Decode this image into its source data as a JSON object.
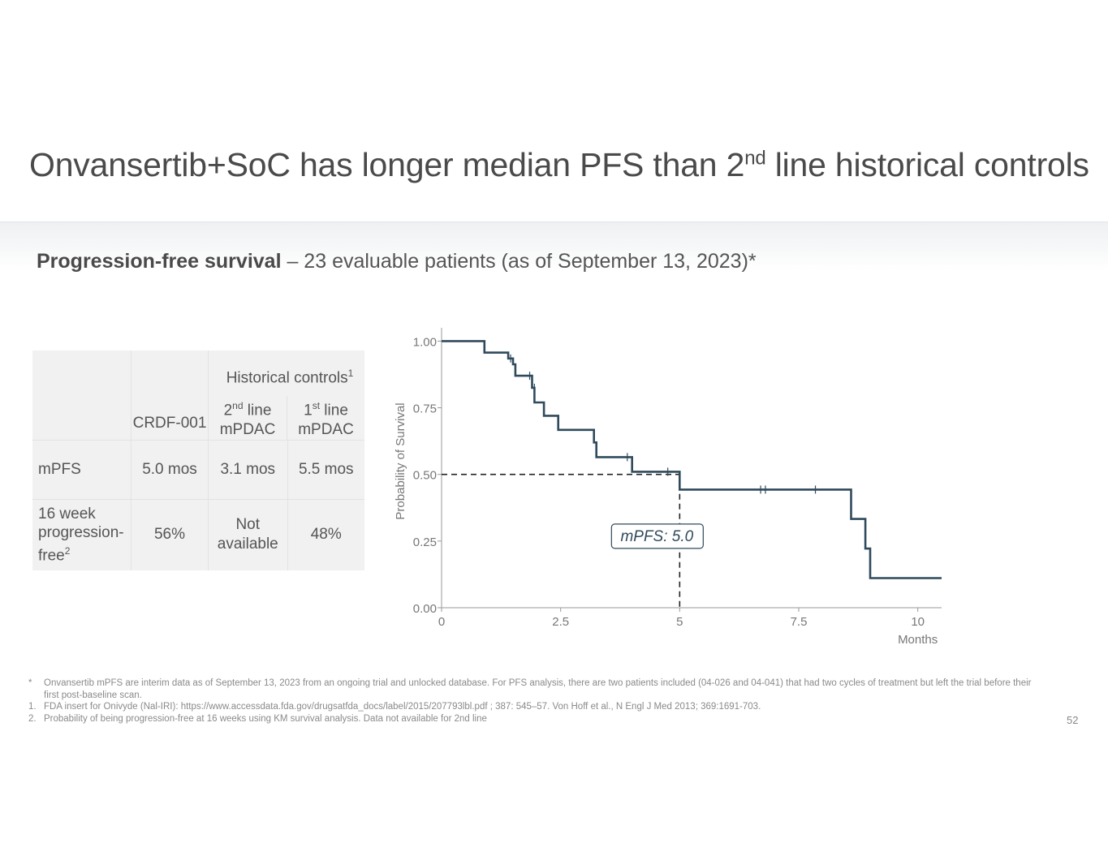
{
  "slide": {
    "title_pre": "Onvansertib+SoC has longer median PFS than 2",
    "title_sup": "nd",
    "title_post": " line historical controls",
    "subtitle_bold": "Progression-free survival",
    "subtitle_rest": " – 23 evaluable patients (as of September 13, 2023)*",
    "page_number": "52"
  },
  "table": {
    "group_header": "Historical controls",
    "group_header_sup": "1",
    "col_crdf": "CRDF-001",
    "col_2nd_num": "2",
    "col_2nd_sup": "nd",
    "col_2nd_rest": " line",
    "col_2nd_sub": "mPDAC",
    "col_1st_num": "1",
    "col_1st_sup": "st",
    "col_1st_rest": " line",
    "col_1st_sub": "mPDAC",
    "row1": {
      "label": "mPFS",
      "crdf": "5.0 mos",
      "second": "3.1 mos",
      "first": "5.5 mos"
    },
    "row2": {
      "label_l1": "16 week",
      "label_l2": "progression-",
      "label_l3": "free",
      "label_sup": "2",
      "crdf": "56%",
      "second_l1": "Not",
      "second_l2": "available",
      "first": "48%"
    }
  },
  "chart_data": {
    "type": "line",
    "subtype": "kaplan-meier step curve",
    "ylabel": "Probability of Survival",
    "xlabel": "Months",
    "xlim": [
      0,
      10.5
    ],
    "ylim": [
      0,
      1.05
    ],
    "x_ticks": [
      0,
      2.5,
      5,
      7.5,
      10
    ],
    "x_tick_labels": [
      "0",
      "2.5",
      "5",
      "7.5",
      "10"
    ],
    "y_ticks": [
      0,
      0.25,
      0.5,
      0.75,
      1.0
    ],
    "y_tick_labels": [
      "0.00",
      "0.25",
      "0.50",
      "0.75",
      "1.00"
    ],
    "series": [
      {
        "name": "PFS",
        "color": "#2f4a5c",
        "x": [
          0,
          0.9,
          0.9,
          1.4,
          1.4,
          1.5,
          1.5,
          1.55,
          1.55,
          1.9,
          1.9,
          1.95,
          1.95,
          2.15,
          2.15,
          2.45,
          2.45,
          3.2,
          3.2,
          3.25,
          3.25,
          4.0,
          4.0,
          5.0,
          5.0,
          8.6,
          8.6,
          8.9,
          8.9,
          9.0,
          9.0,
          10.5
        ],
        "y": [
          1.0,
          1.0,
          0.957,
          0.957,
          0.935,
          0.935,
          0.913,
          0.913,
          0.87,
          0.87,
          0.825,
          0.825,
          0.77,
          0.77,
          0.72,
          0.72,
          0.667,
          0.667,
          0.62,
          0.62,
          0.565,
          0.565,
          0.51,
          0.51,
          0.443,
          0.443,
          0.333,
          0.333,
          0.222,
          0.222,
          0.111,
          0.111
        ]
      }
    ],
    "censor_marks": [
      {
        "x": 1.45,
        "y": 0.935
      },
      {
        "x": 1.85,
        "y": 0.87
      },
      {
        "x": 1.95,
        "y": 0.825
      },
      {
        "x": 3.9,
        "y": 0.565
      },
      {
        "x": 4.75,
        "y": 0.51
      },
      {
        "x": 6.7,
        "y": 0.443
      },
      {
        "x": 6.8,
        "y": 0.443
      },
      {
        "x": 7.85,
        "y": 0.443
      }
    ],
    "median_reference": {
      "y": 0.5,
      "x": 5.0
    },
    "annotation": "mPFS: 5.0"
  },
  "footnotes": [
    {
      "marker": "*",
      "text": "Onvansertib mPFS are interim data as of September 13, 2023 from an ongoing trial and unlocked database. For PFS analysis, there are two patients included (04-026 and 04-041) that had two cycles of treatment but left the trial before their first post-baseline scan."
    },
    {
      "marker": "1.",
      "text": "FDA insert for Onivyde (Nal-IRI): https://www.accessdata.fda.gov/drugsatfda_docs/label/2015/207793lbl.pdf ; 387: 545–57. Von Hoff et al., N Engl J Med 2013; 369:1691-703."
    },
    {
      "marker": "2.",
      "text": "Probability of being progression-free at 16 weeks using KM survival analysis. Data not available for 2nd line"
    }
  ]
}
